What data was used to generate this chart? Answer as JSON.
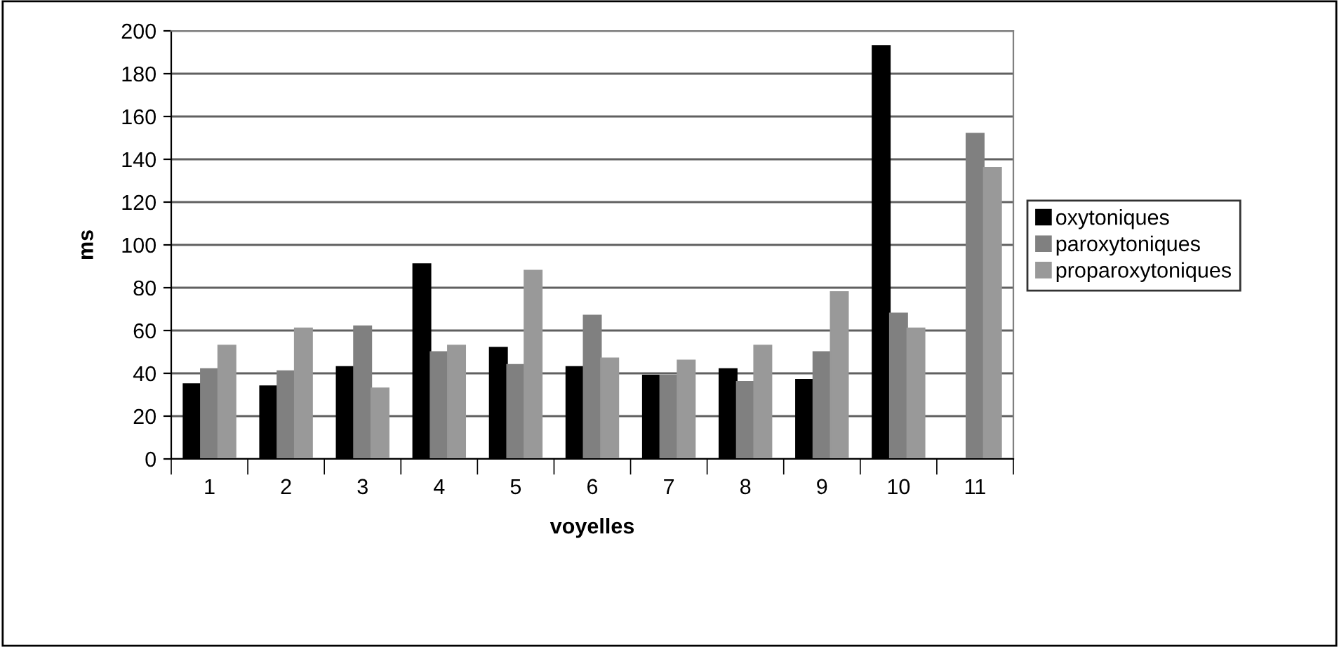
{
  "chart_data": {
    "type": "bar",
    "xlabel": "voyelles",
    "ylabel": "ms",
    "categories": [
      "1",
      "2",
      "3",
      "4",
      "5",
      "6",
      "7",
      "8",
      "9",
      "10",
      "11"
    ],
    "series": [
      {
        "name": "oxytoniques",
        "color": "#000000",
        "values": [
          35,
          34,
          43,
          91,
          52,
          43,
          39,
          42,
          37,
          193,
          null
        ]
      },
      {
        "name": "paroxytoniques",
        "color": "#808080",
        "values": [
          42,
          41,
          62,
          50,
          44,
          67,
          39,
          36,
          50,
          68,
          152
        ]
      },
      {
        "name": "proparoxytoniques",
        "color": "#999999",
        "values": [
          53,
          61,
          33,
          53,
          88,
          47,
          46,
          53,
          78,
          61,
          136
        ]
      }
    ],
    "ylim": [
      0,
      200
    ],
    "yticks": [
      0,
      20,
      40,
      60,
      80,
      100,
      120,
      140,
      160,
      180,
      200
    ],
    "grid": "y",
    "legend": "right"
  }
}
